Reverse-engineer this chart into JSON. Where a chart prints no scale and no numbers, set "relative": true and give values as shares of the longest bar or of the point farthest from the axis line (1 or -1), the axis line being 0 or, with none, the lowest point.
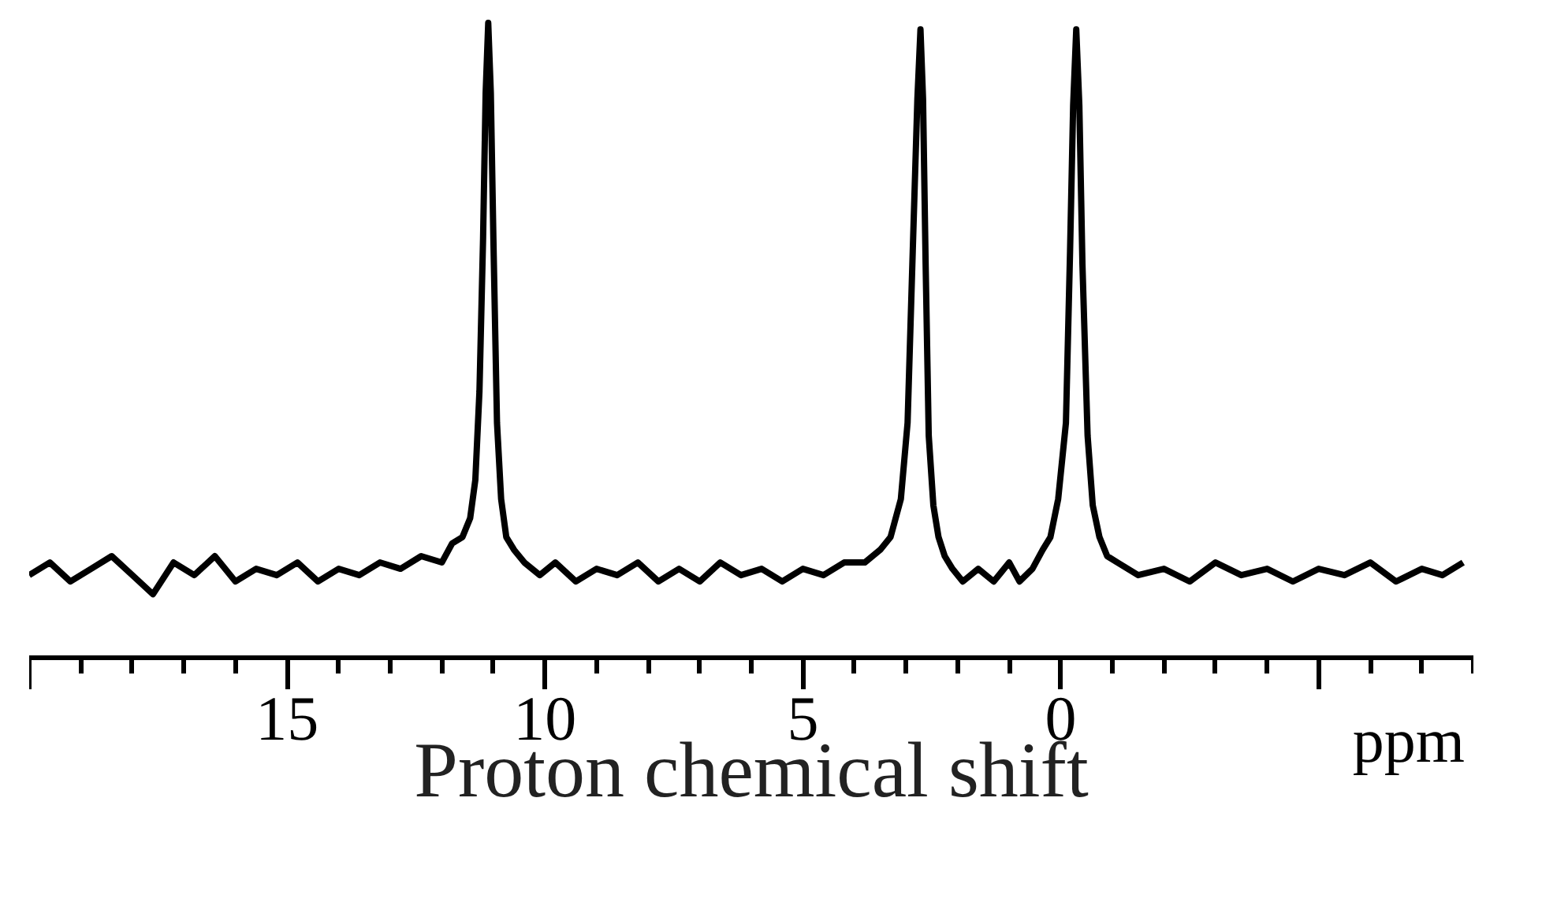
{
  "chart_data": {
    "type": "line",
    "relative": true,
    "xlabel": "Proton chemical shift",
    "annotations": [
      "ppm"
    ],
    "xlim": [
      20,
      -8
    ],
    "xticks": [
      15,
      10,
      5,
      0
    ],
    "grid": false,
    "marker": "none",
    "line_style": "solid",
    "series": [
      {
        "color": "#000000",
        "x": [
          20,
          19.6,
          19.2,
          18.8,
          18.4,
          18.0,
          17.6,
          17.2,
          16.8,
          16.4,
          16.0,
          15.6,
          15.2,
          14.8,
          14.4,
          14.0,
          13.6,
          13.2,
          12.8,
          12.4,
          12.0,
          11.8,
          11.6,
          11.45,
          11.35,
          11.27,
          11.2,
          11.15,
          11.1,
          11.05,
          11.0,
          10.93,
          10.85,
          10.75,
          10.6,
          10.4,
          10.1,
          9.8,
          9.4,
          9.0,
          8.6,
          8.2,
          7.8,
          7.4,
          7.0,
          6.6,
          6.2,
          5.8,
          5.4,
          5.0,
          4.6,
          4.2,
          3.8,
          3.5,
          3.3,
          3.1,
          2.97,
          2.87,
          2.78,
          2.72,
          2.67,
          2.62,
          2.56,
          2.47,
          2.37,
          2.25,
          2.1,
          1.9,
          1.6,
          1.3,
          1.0,
          0.8,
          0.55,
          0.35,
          0.2,
          0.05,
          -0.1,
          -0.18,
          -0.24,
          -0.3,
          -0.36,
          -0.42,
          -0.52,
          -0.62,
          -0.75,
          -0.9,
          -1.1,
          -1.5,
          -2.0,
          -2.5,
          -3.0,
          -3.5,
          -4.0,
          -4.5,
          -5.0,
          -5.5,
          -6.0,
          -6.5,
          -7.0,
          -7.4,
          -7.8
        ],
        "values": [
          0.13,
          0.15,
          0.12,
          0.14,
          0.16,
          0.13,
          0.1,
          0.15,
          0.13,
          0.16,
          0.12,
          0.14,
          0.13,
          0.15,
          0.12,
          0.14,
          0.13,
          0.15,
          0.14,
          0.16,
          0.15,
          0.18,
          0.19,
          0.22,
          0.28,
          0.42,
          0.66,
          0.89,
          1.0,
          0.89,
          0.66,
          0.37,
          0.25,
          0.19,
          0.17,
          0.15,
          0.13,
          0.15,
          0.12,
          0.14,
          0.13,
          0.15,
          0.12,
          0.14,
          0.12,
          0.15,
          0.13,
          0.14,
          0.12,
          0.14,
          0.13,
          0.15,
          0.15,
          0.17,
          0.19,
          0.25,
          0.37,
          0.64,
          0.88,
          0.99,
          0.88,
          0.62,
          0.35,
          0.24,
          0.19,
          0.16,
          0.14,
          0.12,
          0.14,
          0.12,
          0.15,
          0.12,
          0.14,
          0.17,
          0.19,
          0.25,
          0.37,
          0.64,
          0.87,
          0.99,
          0.87,
          0.62,
          0.35,
          0.24,
          0.19,
          0.16,
          0.15,
          0.13,
          0.14,
          0.12,
          0.15,
          0.13,
          0.14,
          0.12,
          0.14,
          0.13,
          0.15,
          0.12,
          0.14,
          0.13,
          0.15
        ]
      }
    ]
  }
}
